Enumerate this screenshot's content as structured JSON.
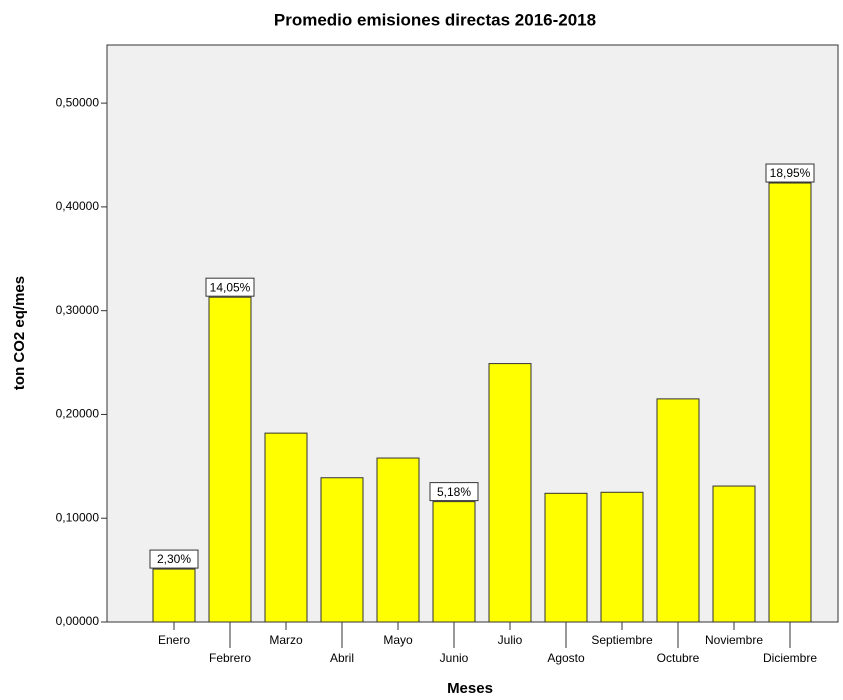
{
  "chart_data": {
    "type": "bar",
    "title": "Promedio emisiones directas 2016-2018",
    "x_label": "Meses",
    "y_label": "ton CO2 eq/mes",
    "categories": [
      "Enero",
      "Febrero",
      "Marzo",
      "Abril",
      "Mayo",
      "Junio",
      "Julio",
      "Agosto",
      "Septiembre",
      "Octubre",
      "Noviembre",
      "Diciembre"
    ],
    "values": [
      0.051,
      0.313,
      0.182,
      0.139,
      0.158,
      0.116,
      0.249,
      0.124,
      0.125,
      0.215,
      0.131,
      0.423
    ],
    "color": "#ffff00",
    "percentages": {
      "values": [
        2.3,
        14.05,
        null,
        null,
        null,
        5.18,
        null,
        null,
        null,
        null,
        null,
        18.95
      ],
      "value_labels": [
        "2,30%",
        "14,05%",
        null,
        null,
        null,
        "5,18%",
        null,
        null,
        null,
        null,
        null,
        "18,95%"
      ]
    },
    "ylim": [
      0,
      0.556
    ],
    "yticks": [
      {
        "value": 0,
        "label": "0,00000"
      },
      {
        "value": 0.1,
        "label": "0,10000"
      },
      {
        "value": 0.2,
        "label": "0,20000"
      },
      {
        "value": 0.3,
        "label": "0,30000"
      },
      {
        "value": 0.4,
        "label": "0,40000"
      },
      {
        "value": 0.5,
        "label": "0,50000"
      }
    ],
    "grid": false
  }
}
